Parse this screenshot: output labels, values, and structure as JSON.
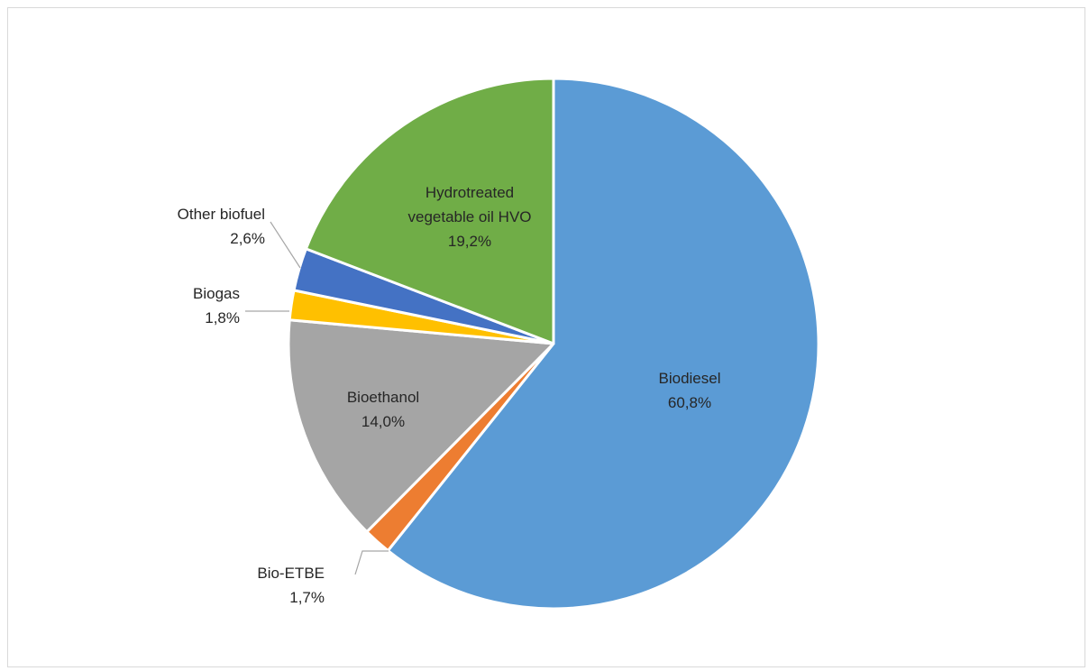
{
  "chart_data": {
    "type": "pie",
    "title": "",
    "start_angle_deg": 0,
    "direction": "clockwise",
    "slices": [
      {
        "name": "Biodiesel",
        "value": 60.8,
        "label": "60,8%",
        "color": "#5b9bd5"
      },
      {
        "name": "Bio-ETBE",
        "value": 1.7,
        "label": "1,7%",
        "color": "#ed7d31"
      },
      {
        "name": "Bioethanol",
        "value": 14.0,
        "label": "14,0%",
        "color": "#a5a5a5"
      },
      {
        "name": "Biogas",
        "value": 1.8,
        "label": "1,8%",
        "color": "#ffc000"
      },
      {
        "name": "Other biofuel",
        "value": 2.6,
        "label": "2,6%",
        "color": "#4472c4"
      },
      {
        "name": "Hydrotreated vegetable oil HVO",
        "value": 19.2,
        "label": "19,2%",
        "color": "#70ad47"
      }
    ]
  }
}
